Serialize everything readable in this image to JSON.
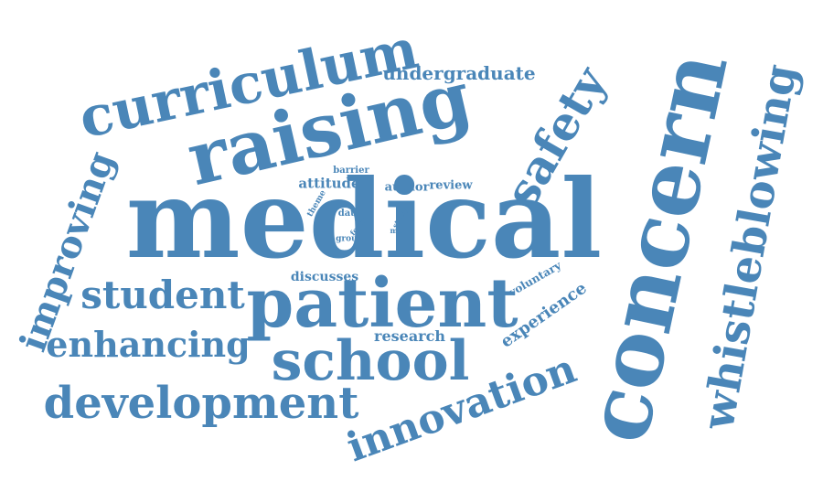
{
  "color": "#4a86b8",
  "words": {
    "medical": "medical",
    "concern": "concern",
    "raising": "raising",
    "curriculum": "curriculum",
    "patient": "patient",
    "school": "school",
    "whistleblowing": "whistleblowing",
    "development": "development",
    "innovation": "innovation",
    "student": "student",
    "enhancing": "enhancing",
    "improving": "improving",
    "safety": "safety",
    "undergraduate": "undergraduate",
    "experience": "experience",
    "research": "research",
    "discusses": "discusses",
    "voluntary": "voluntary",
    "attitude": "attitude",
    "author": "author",
    "review": "review",
    "barrier": "barrier",
    "theme": "theme",
    "data": "data",
    "focus": "focus",
    "group": "group",
    "study": "study",
    "more": "more"
  }
}
